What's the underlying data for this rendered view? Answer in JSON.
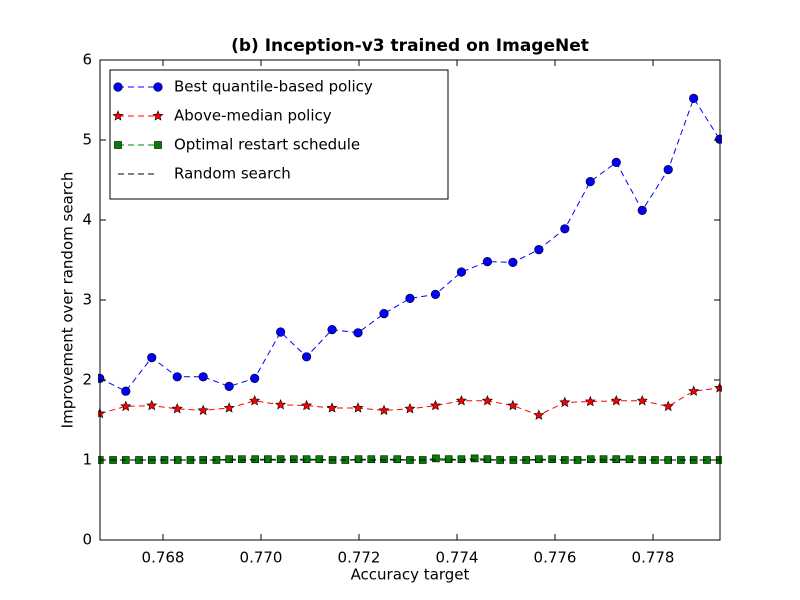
{
  "chart_data": {
    "type": "line",
    "title": "(b) Inception-v3 trained on ImageNet",
    "xlabel": "Accuracy target",
    "ylabel": "Improvement over random search",
    "xlim": [
      0.766714,
      0.779367
    ],
    "ylim": [
      0,
      6
    ],
    "xticks": [
      0.768,
      {
        "value": 0.77,
        "label": "0.770"
      },
      0.772,
      0.774,
      0.776,
      0.778
    ],
    "yticks": [
      0,
      1,
      2,
      3,
      4,
      5,
      6
    ],
    "legend": "upper left",
    "series": [
      {
        "name": "Best quantile-based policy",
        "color": "#0000ff",
        "marker": "circle",
        "x": [
          0.76671,
          0.76724,
          0.76777,
          0.76829,
          0.76882,
          0.76935,
          0.76987,
          0.7704,
          0.77093,
          0.77145,
          0.77198,
          0.77251,
          0.77304,
          0.77356,
          0.77409,
          0.77462,
          0.77514,
          0.77567,
          0.7762,
          0.77672,
          0.77725,
          0.77778,
          0.77831,
          0.77883,
          0.77936
        ],
        "values": [
          2.02,
          1.86,
          2.28,
          2.04,
          2.04,
          1.92,
          2.02,
          2.6,
          2.29,
          2.63,
          2.59,
          2.83,
          3.02,
          3.07,
          3.35,
          3.48,
          3.47,
          3.63,
          3.89,
          4.48,
          4.72,
          4.12,
          4.63,
          5.52,
          5.01
        ]
      },
      {
        "name": "Above-median policy",
        "color": "#ff0000",
        "marker": "star",
        "x": [
          0.76671,
          0.76724,
          0.76777,
          0.76829,
          0.76882,
          0.76935,
          0.76987,
          0.7704,
          0.77093,
          0.77145,
          0.77198,
          0.77251,
          0.77304,
          0.77356,
          0.77409,
          0.77462,
          0.77514,
          0.77567,
          0.7762,
          0.77672,
          0.77725,
          0.77778,
          0.77831,
          0.77883,
          0.77936
        ],
        "values": [
          1.58,
          1.67,
          1.68,
          1.64,
          1.62,
          1.65,
          1.74,
          1.69,
          1.68,
          1.65,
          1.65,
          1.62,
          1.64,
          1.68,
          1.74,
          1.74,
          1.68,
          1.56,
          1.72,
          1.73,
          1.74,
          1.74,
          1.67,
          1.86,
          1.9
        ]
      },
      {
        "name": "Optimal restart schedule",
        "color": "#008000",
        "marker": "square",
        "x": [
          0.76671,
          0.76698,
          0.76724,
          0.76751,
          0.76777,
          0.76803,
          0.7683,
          0.76856,
          0.76882,
          0.76909,
          0.76935,
          0.76961,
          0.76988,
          0.77014,
          0.7704,
          0.77067,
          0.77093,
          0.77119,
          0.77146,
          0.77172,
          0.77199,
          0.77225,
          0.77251,
          0.77278,
          0.77304,
          0.7733,
          0.77357,
          0.77383,
          0.77409,
          0.77436,
          0.77462,
          0.77488,
          0.77515,
          0.77541,
          0.77567,
          0.77594,
          0.7762,
          0.77646,
          0.77673,
          0.77699,
          0.77725,
          0.77752,
          0.77778,
          0.77804,
          0.77831,
          0.77857,
          0.77883,
          0.7791,
          0.77936
        ],
        "values": [
          1,
          1,
          1,
          1,
          1,
          1,
          1,
          1,
          1,
          1,
          1.01,
          1.01,
          1.01,
          1.01,
          1.01,
          1.01,
          1.01,
          1.01,
          1,
          1,
          1.01,
          1.01,
          1.01,
          1.01,
          1,
          1,
          1.02,
          1.01,
          1.01,
          1.02,
          1.01,
          1,
          1,
          1,
          1.01,
          1.01,
          1,
          1,
          1.01,
          1.01,
          1.01,
          1.01,
          1,
          1,
          1,
          1,
          1,
          1,
          1
        ]
      },
      {
        "name": "Random search",
        "color": "#000000",
        "marker": "none",
        "x": [
          0.766714,
          0.779367
        ],
        "values": [
          1,
          1
        ]
      }
    ]
  }
}
